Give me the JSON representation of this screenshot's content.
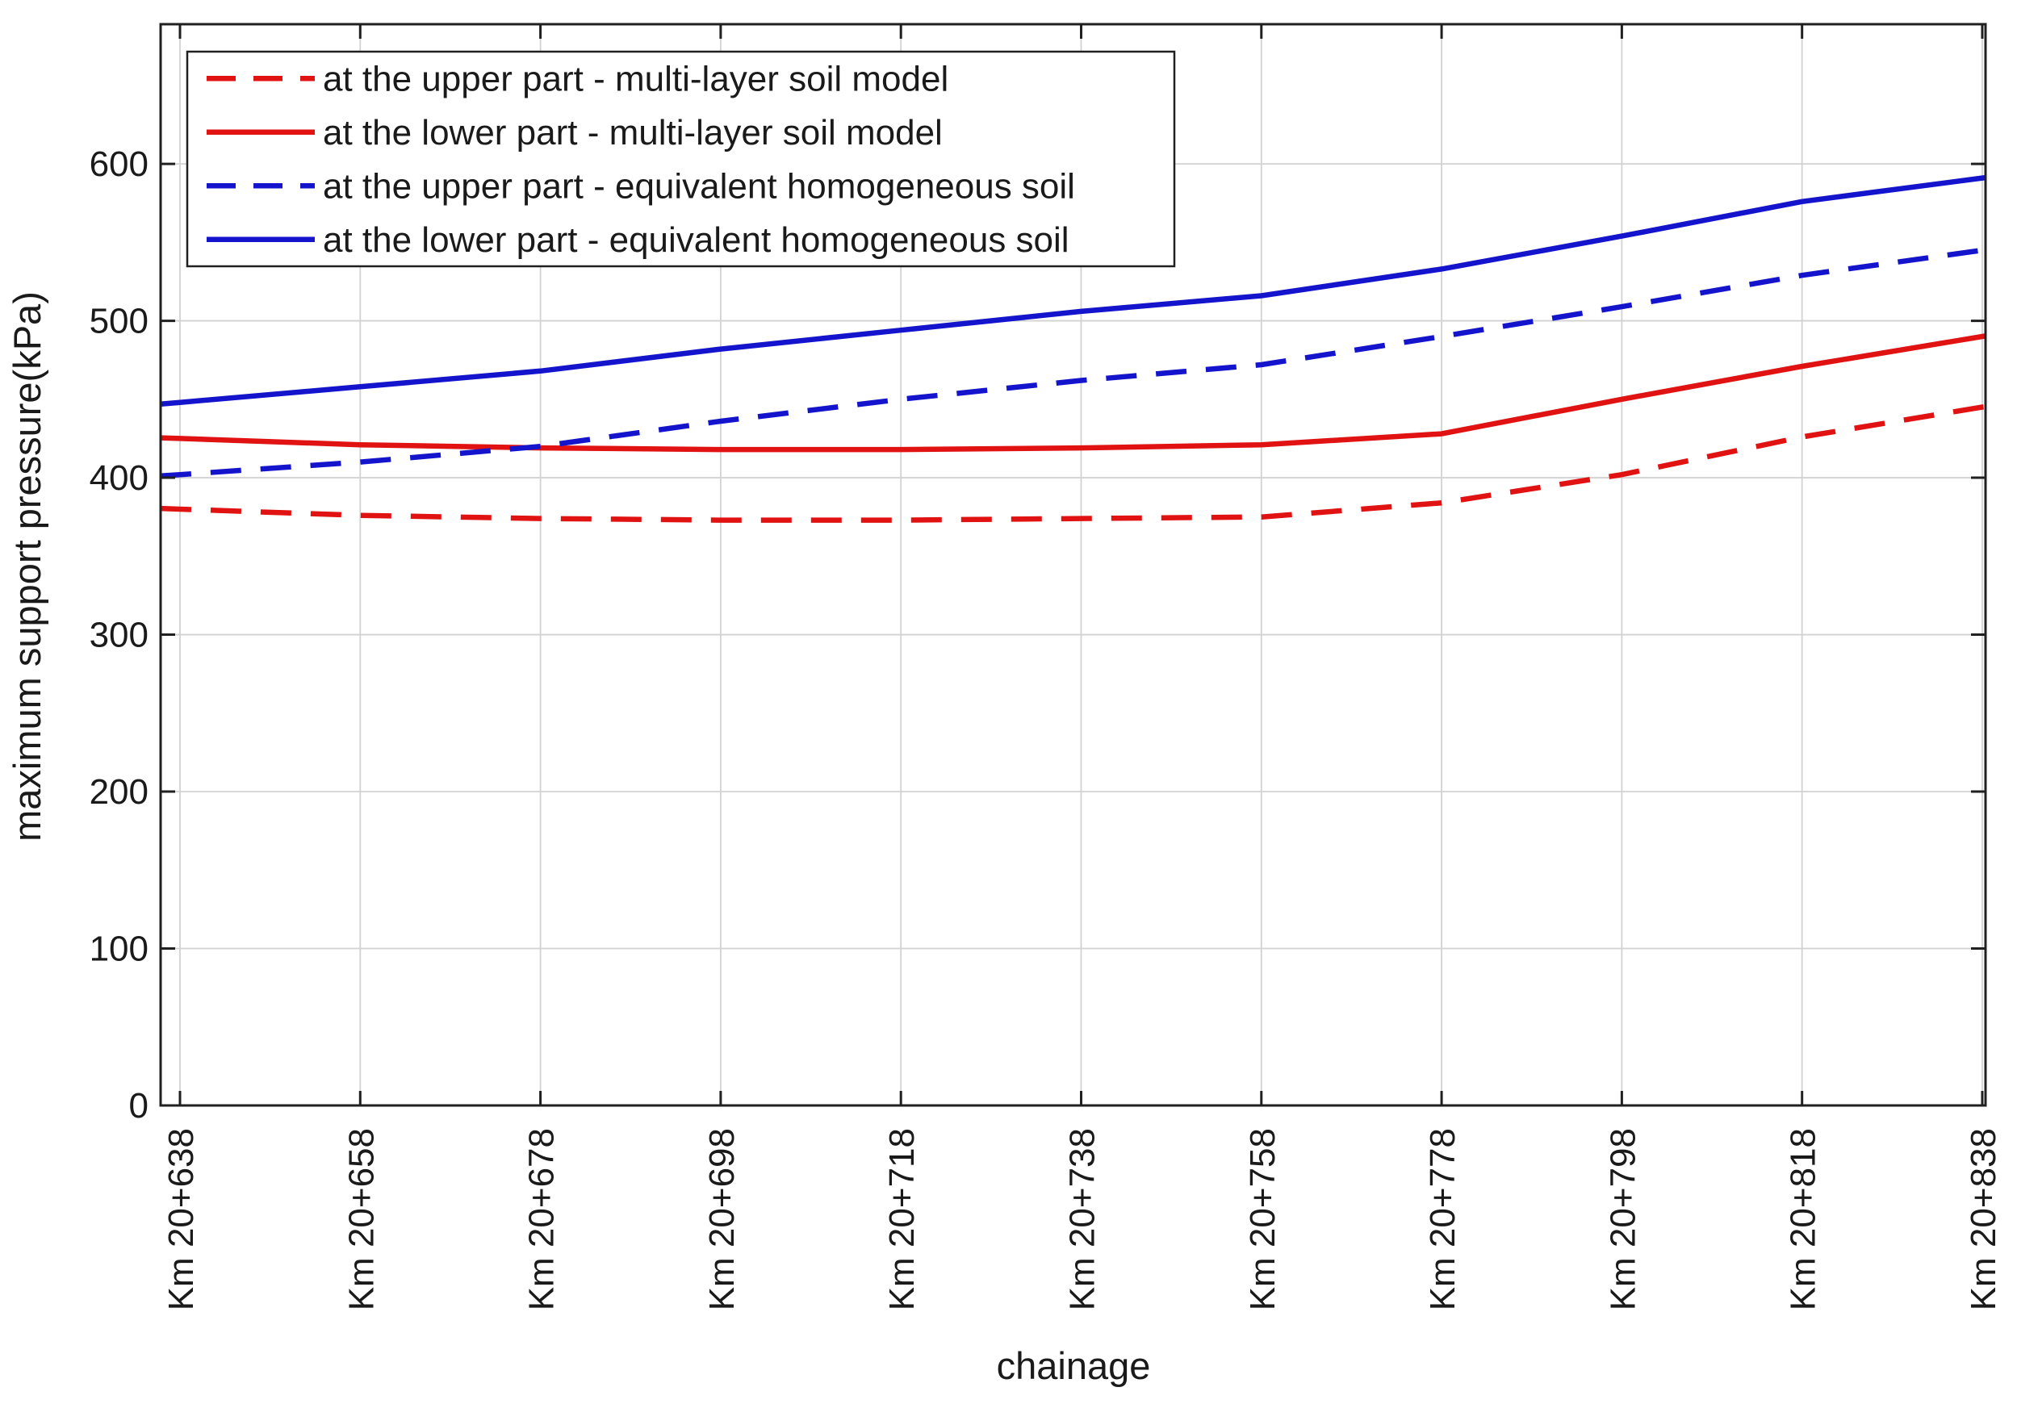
{
  "figure": {
    "background": "#ffffff",
    "frame_color": "#202020",
    "grid_color": "#d2d2d2",
    "text_color": "#1a1a1a"
  },
  "chart_data": {
    "type": "line",
    "title": "",
    "xlabel": "chainage",
    "ylabel": "maximum support pressure(kPa)",
    "grid": true,
    "legend_position": "top-left-inside",
    "x_values": [
      638,
      658,
      678,
      698,
      718,
      738,
      758,
      778,
      798,
      818,
      838
    ],
    "x_tick_labels": [
      "Km 20+638",
      "Km 20+658",
      "Km 20+678",
      "Km 20+698",
      "Km 20+718",
      "Km 20+738",
      "Km 20+758",
      "Km 20+778",
      "Km 20+798",
      "Km 20+818",
      "Km 20+838"
    ],
    "xlim": [
      635.85,
      838.36
    ],
    "ylim": [
      0,
      689
    ],
    "y_ticks": [
      0,
      100,
      200,
      300,
      400,
      500,
      600
    ],
    "series": [
      {
        "name": "at the upper part - multi-layer soil model",
        "color": "#e01212",
        "style": "dashed",
        "values": [
          380,
          376,
          374,
          373,
          373,
          374,
          375,
          384,
          402,
          426,
          445
        ]
      },
      {
        "name": "at the lower part - multi-layer soil model",
        "color": "#e01212",
        "style": "solid",
        "values": [
          425,
          421,
          419,
          418,
          418,
          419,
          421,
          428,
          450,
          471,
          490
        ]
      },
      {
        "name": "at the upper part - equivalent homogeneous soil",
        "color": "#1414cc",
        "style": "dashed",
        "values": [
          402,
          410,
          420,
          436,
          450,
          462,
          472,
          490,
          509,
          529,
          545
        ]
      },
      {
        "name": "at the lower part - equivalent homogeneous soil",
        "color": "#1414cc",
        "style": "solid",
        "values": [
          448,
          458,
          468,
          482,
          494,
          506,
          516,
          533,
          554,
          576,
          591
        ]
      }
    ]
  }
}
